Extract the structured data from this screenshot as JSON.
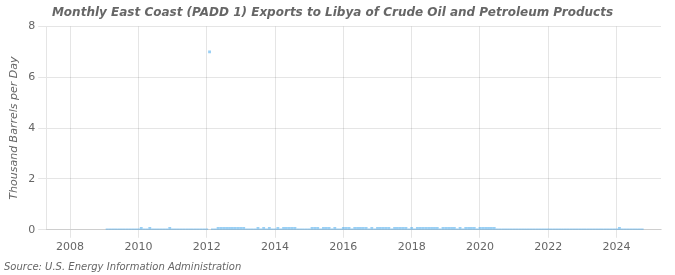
{
  "chart_data": {
    "type": "scatter",
    "title": "Monthly East Coast (PADD 1) Exports to Libya of Crude Oil and Petroleum Products",
    "ylabel": "Thousand Barrels per Day",
    "source": "Source: U.S. Energy Information Administration",
    "marker": "square",
    "grid": true,
    "xlim": [
      2007.3,
      2025.3
    ],
    "xticks": [
      2008,
      2010,
      2012,
      2014,
      2016,
      2018,
      2020,
      2022,
      2024
    ],
    "ylim": [
      0,
      8
    ],
    "yticks": [
      0,
      2,
      4,
      6,
      8
    ],
    "x": [
      2009.083,
      2009.167,
      2009.25,
      2009.333,
      2009.417,
      2009.5,
      2009.583,
      2009.667,
      2009.75,
      2009.833,
      2009.917,
      2010.0,
      2010.083,
      2010.167,
      2010.25,
      2010.333,
      2010.417,
      2010.5,
      2010.583,
      2010.667,
      2010.75,
      2010.833,
      2010.917,
      2011.0,
      2011.083,
      2011.167,
      2011.25,
      2011.333,
      2011.417,
      2011.5,
      2011.583,
      2011.667,
      2011.75,
      2011.833,
      2011.917,
      2012.0,
      2012.083,
      2012.167,
      2012.25,
      2012.333,
      2012.417,
      2012.5,
      2012.583,
      2012.667,
      2012.75,
      2012.833,
      2012.917,
      2013.0,
      2013.083,
      2013.167,
      2013.25,
      2013.333,
      2013.417,
      2013.5,
      2013.583,
      2013.667,
      2013.75,
      2013.833,
      2013.917,
      2014.0,
      2014.083,
      2014.167,
      2014.25,
      2014.333,
      2014.417,
      2014.5,
      2014.583,
      2014.667,
      2014.75,
      2014.833,
      2014.917,
      2015.0,
      2015.083,
      2015.167,
      2015.25,
      2015.333,
      2015.417,
      2015.5,
      2015.583,
      2015.667,
      2015.75,
      2015.833,
      2015.917,
      2016.0,
      2016.083,
      2016.167,
      2016.25,
      2016.333,
      2016.417,
      2016.5,
      2016.583,
      2016.667,
      2016.75,
      2016.833,
      2016.917,
      2017.0,
      2017.083,
      2017.167,
      2017.25,
      2017.333,
      2017.417,
      2017.5,
      2017.583,
      2017.667,
      2017.75,
      2017.833,
      2017.917,
      2018.0,
      2018.083,
      2018.167,
      2018.25,
      2018.333,
      2018.417,
      2018.5,
      2018.583,
      2018.667,
      2018.75,
      2018.833,
      2018.917,
      2019.0,
      2019.083,
      2019.167,
      2019.25,
      2019.333,
      2019.417,
      2019.5,
      2019.583,
      2019.667,
      2019.75,
      2019.833,
      2019.917,
      2020.0,
      2020.083,
      2020.167,
      2020.25,
      2020.333,
      2020.417,
      2020.5,
      2020.583,
      2020.667,
      2020.75,
      2020.833,
      2020.917,
      2021.0,
      2021.083,
      2021.167,
      2021.25,
      2021.333,
      2021.417,
      2021.5,
      2021.583,
      2021.667,
      2021.75,
      2021.833,
      2021.917,
      2022.0,
      2022.083,
      2022.167,
      2022.25,
      2022.333,
      2022.417,
      2022.5,
      2022.583,
      2022.667,
      2022.75,
      2022.833,
      2022.917,
      2023.0,
      2023.083,
      2023.167,
      2023.25,
      2023.333,
      2023.417,
      2023.5,
      2023.583,
      2023.667,
      2023.75,
      2023.833,
      2023.917,
      2024.0,
      2024.083,
      2024.167,
      2024.25,
      2024.333,
      2024.417,
      2024.5,
      2024.583,
      2024.667,
      2024.75
    ],
    "values": [
      0,
      0,
      0,
      0,
      0,
      0,
      0,
      0,
      0,
      0,
      0,
      0,
      0.05,
      0,
      0,
      0.05,
      0,
      0,
      0,
      0,
      0,
      0,
      0.05,
      0,
      0,
      0,
      0,
      0,
      0,
      0,
      0,
      0,
      0,
      0,
      0,
      0,
      7.0,
      0,
      0,
      0.05,
      0.05,
      0.05,
      0.05,
      0.05,
      0.05,
      0.05,
      0.05,
      0.05,
      0.05,
      0,
      0,
      0,
      0,
      0.05,
      0,
      0.05,
      0,
      0.05,
      0,
      0,
      0.05,
      0,
      0.05,
      0.05,
      0.05,
      0.05,
      0.05,
      0,
      0,
      0,
      0,
      0,
      0.05,
      0.05,
      0.05,
      0,
      0.05,
      0.05,
      0.05,
      0,
      0.05,
      0,
      0,
      0.05,
      0.05,
      0.05,
      0,
      0.05,
      0.05,
      0.05,
      0.05,
      0.05,
      0,
      0.05,
      0,
      0.05,
      0.05,
      0.05,
      0.05,
      0.05,
      0,
      0.05,
      0.05,
      0.05,
      0.05,
      0.05,
      0,
      0.05,
      0,
      0.05,
      0.05,
      0.05,
      0.05,
      0.05,
      0.05,
      0.05,
      0.05,
      0,
      0.05,
      0.05,
      0.05,
      0.05,
      0.05,
      0,
      0.05,
      0,
      0.05,
      0.05,
      0.05,
      0.05,
      0,
      0.05,
      0.05,
      0.05,
      0.05,
      0.05,
      0.05,
      0,
      0,
      0,
      0,
      0,
      0,
      0,
      0,
      0,
      0,
      0,
      0,
      0,
      0,
      0,
      0,
      0,
      0,
      0,
      0,
      0,
      0,
      0,
      0,
      0,
      0,
      0,
      0,
      0,
      0,
      0,
      0,
      0,
      0,
      0,
      0,
      0,
      0,
      0,
      0,
      0,
      0,
      0,
      0.05,
      0,
      0,
      0,
      0,
      0,
      0,
      0,
      0
    ]
  }
}
